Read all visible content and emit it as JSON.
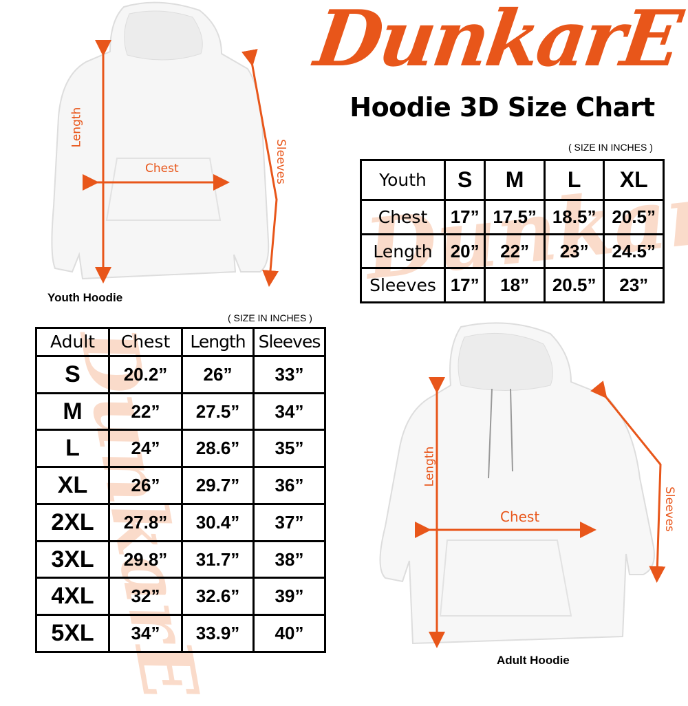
{
  "brand": {
    "logo_text": "DunkarE",
    "accent": "#e8561a",
    "watermark_color": "#f2a073"
  },
  "title": "Hoodie 3D Size Chart",
  "youth": {
    "unit_note": "( SIZE IN INCHES )",
    "caption": "Youth Hoodie",
    "labels": {
      "length": "Length",
      "chest": "Chest",
      "sleeves": "Sleeves"
    },
    "headers": [
      "Youth",
      "S",
      "M",
      "L",
      "XL"
    ],
    "rows": [
      [
        "Chest",
        "17”",
        "17.5”",
        "18.5”",
        "20.5”"
      ],
      [
        "Length",
        "20”",
        "22”",
        "23”",
        "24.5”"
      ],
      [
        "Sleeves",
        "17”",
        "18”",
        "20.5”",
        "23”"
      ]
    ]
  },
  "adult": {
    "unit_note": "( SIZE IN INCHES )",
    "caption": "Adult Hoodie",
    "labels": {
      "length": "Length",
      "chest": "Chest",
      "sleeves": "Sleeves"
    },
    "headers": [
      "Adult",
      "Chest",
      "Length",
      "Sleeves"
    ],
    "rows": [
      [
        "S",
        "20.2”",
        "26”",
        "33”"
      ],
      [
        "M",
        "22”",
        "27.5”",
        "34”"
      ],
      [
        "L",
        "24”",
        "28.6”",
        "35”"
      ],
      [
        "XL",
        "26”",
        "29.7”",
        "36”"
      ],
      [
        "2XL",
        "27.8”",
        "30.4”",
        "37”"
      ],
      [
        "3XL",
        "29.8”",
        "31.7”",
        "38”"
      ],
      [
        "4XL",
        "32”",
        "32.6”",
        "39”"
      ],
      [
        "5XL",
        "34”",
        "33.9”",
        "40”"
      ]
    ]
  }
}
